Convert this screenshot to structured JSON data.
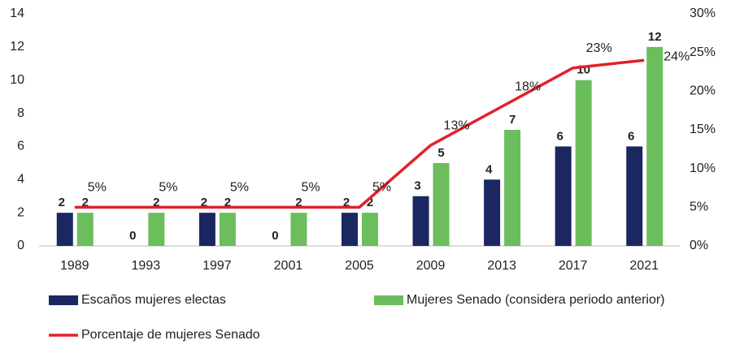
{
  "chart_data": {
    "type": "bar",
    "categories": [
      "1989",
      "1993",
      "1997",
      "2001",
      "2005",
      "2009",
      "2013",
      "2017",
      "2021"
    ],
    "series": [
      {
        "name": "Escaños mujeres electas",
        "color": "#1b2760",
        "values": [
          2,
          0,
          2,
          0,
          2,
          3,
          4,
          6,
          6
        ]
      },
      {
        "name": "Mujeres Senado (considera periodo anterior)",
        "color": "#6cbd5c",
        "values": [
          2,
          2,
          2,
          2,
          2,
          5,
          7,
          10,
          12
        ]
      },
      {
        "name": "Porcentaje de mujeres Senado",
        "color": "#e3202a",
        "type": "line",
        "axis": "y2",
        "values": [
          5,
          5,
          5,
          5,
          5,
          13,
          18,
          23,
          24
        ],
        "value_labels": [
          "5%",
          "5%",
          "5%",
          "5%",
          "5%",
          "13%",
          "18%",
          "23%",
          "24%"
        ]
      }
    ],
    "ylim": [
      0,
      14
    ],
    "yticks": [
      0,
      2,
      4,
      6,
      8,
      10,
      12,
      14
    ],
    "y2lim": [
      0,
      30
    ],
    "y2ticks": [
      {
        "value": 0,
        "label": "0%"
      },
      {
        "value": 5,
        "label": "5%"
      },
      {
        "value": 10,
        "label": "10%"
      },
      {
        "value": 15,
        "label": "15%"
      },
      {
        "value": 20,
        "label": "20%"
      },
      {
        "value": 25,
        "label": "25%"
      },
      {
        "value": 30,
        "label": "30%"
      }
    ],
    "grid": false,
    "legend": "bottom"
  }
}
